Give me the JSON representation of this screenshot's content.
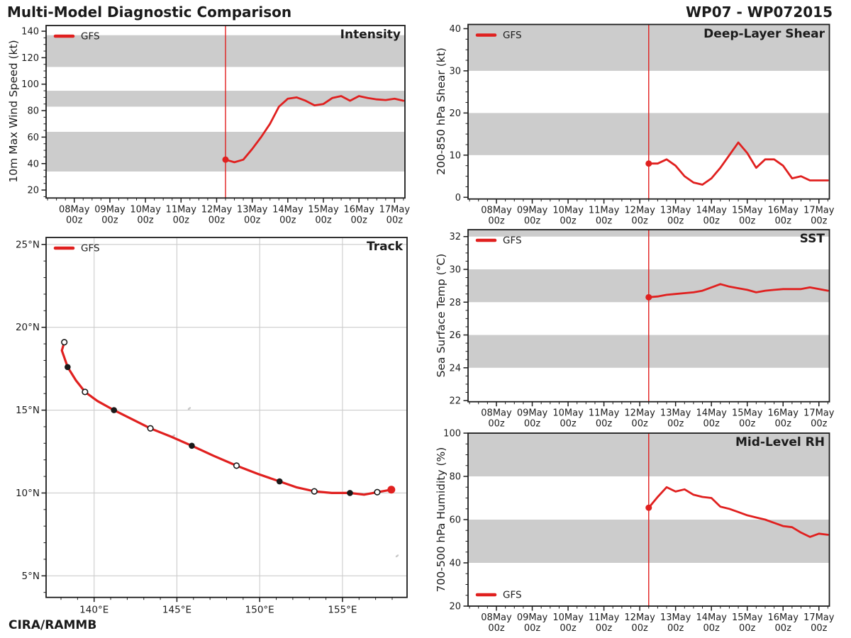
{
  "header": {
    "title": "Multi-Model Diagnostic Comparison",
    "storm_id": "WP07 - WP072015",
    "credit": "CIRA/RAMMB"
  },
  "legend": {
    "label": "GFS"
  },
  "colors": {
    "series": "#e0201f",
    "band": "#cccccc",
    "grid": "#cccccc",
    "spine": "#1c1c1c",
    "text": "#1c1c1c",
    "marker_filled": "#1a1a1a",
    "marker_open": "#ffffff",
    "map_feature": "#c9c9c9"
  },
  "time_axis": {
    "xlim_hours": [
      -121,
      121
    ],
    "minor_step_hours": 6,
    "init_hour": 0,
    "ticks": [
      {
        "hour": -102,
        "label": "08May",
        "sub": "00z"
      },
      {
        "hour": -78,
        "label": "09May",
        "sub": "00z"
      },
      {
        "hour": -54,
        "label": "10May",
        "sub": "00z"
      },
      {
        "hour": -30,
        "label": "11May",
        "sub": "00z"
      },
      {
        "hour": -6,
        "label": "12May",
        "sub": "00z"
      },
      {
        "hour": 18,
        "label": "13May",
        "sub": "00z"
      },
      {
        "hour": 42,
        "label": "14May",
        "sub": "00z"
      },
      {
        "hour": 66,
        "label": "15May",
        "sub": "00z"
      },
      {
        "hour": 90,
        "label": "16May",
        "sub": "00z"
      },
      {
        "hour": 114,
        "label": "17May",
        "sub": "00z"
      }
    ]
  },
  "chart_data": [
    {
      "id": "intensity",
      "type": "line",
      "title": "Intensity",
      "ylabel": "10m Max Wind Speed (kt)",
      "ylim": [
        14,
        144.3
      ],
      "yticks": [
        20,
        40,
        60,
        80,
        100,
        120,
        140
      ],
      "y_minor_step": 5,
      "bands": [
        [
          34,
          64
        ],
        [
          83,
          95
        ],
        [
          113,
          137
        ]
      ],
      "x_start_hour": 0,
      "x_step_hours": 6,
      "values": [
        43,
        41,
        43,
        51,
        60,
        70,
        83,
        89,
        90,
        87.5,
        84,
        85,
        89.5,
        91,
        87.5,
        91,
        89.5,
        88.5,
        88,
        89,
        87.5
      ],
      "legend_pos": "top-left"
    },
    {
      "id": "shear",
      "type": "line",
      "title": "Deep-Layer Shear",
      "ylabel": "200-850 hPa Shear (kt)",
      "ylim": [
        -0.4,
        41
      ],
      "yticks": [
        0,
        10,
        20,
        30,
        40
      ],
      "y_minor_step": 2.5,
      "bands": [
        [
          10,
          20
        ],
        [
          30,
          41
        ]
      ],
      "x_start_hour": 0,
      "x_step_hours": 6,
      "values": [
        8,
        8,
        9,
        7.5,
        5,
        3.5,
        3,
        4.5,
        7,
        10,
        13,
        10.5,
        7,
        9,
        9,
        7.5,
        4.5,
        5,
        4,
        4,
        4
      ],
      "legend_pos": "top-left"
    },
    {
      "id": "sst",
      "type": "line",
      "title": "SST",
      "ylabel": "Sea Surface Temp (°C)",
      "ylim": [
        21.93,
        32.42
      ],
      "yticks": [
        22,
        24,
        26,
        28,
        30,
        32
      ],
      "y_minor_step": 0.5,
      "bands": [
        [
          24,
          26
        ],
        [
          28,
          30
        ],
        [
          32,
          32.42
        ]
      ],
      "x_start_hour": 0,
      "x_step_hours": 6,
      "values": [
        28.3,
        28.35,
        28.45,
        28.5,
        28.55,
        28.6,
        28.7,
        28.9,
        29.1,
        28.95,
        28.85,
        28.75,
        28.6,
        28.7,
        28.75,
        28.8,
        28.8,
        28.8,
        28.9,
        28.8,
        28.7
      ],
      "legend_pos": "top-left"
    },
    {
      "id": "rh",
      "type": "line",
      "title": "Mid-Level RH",
      "ylabel": "700-500 hPa Humidity (%)",
      "ylim": [
        20,
        100
      ],
      "yticks": [
        20,
        40,
        60,
        80,
        100
      ],
      "y_minor_step": 5,
      "bands": [
        [
          40,
          60
        ],
        [
          80,
          100
        ]
      ],
      "x_start_hour": 0,
      "x_step_hours": 6,
      "values": [
        65.5,
        70.5,
        75,
        73,
        74,
        71.5,
        70.5,
        70,
        66,
        65,
        63.5,
        62,
        61,
        60,
        58.5,
        57,
        56.5,
        54,
        52,
        53.5,
        53
      ],
      "legend_pos": "bottom-left"
    },
    {
      "id": "track",
      "type": "track",
      "title": "Track",
      "xlim": [
        137.1,
        158.9
      ],
      "ylim": [
        3.7,
        25.42
      ],
      "xticks": [
        {
          "v": 140,
          "label": "140°E"
        },
        {
          "v": 145,
          "label": "145°E"
        },
        {
          "v": 150,
          "label": "150°E"
        },
        {
          "v": 155,
          "label": "155°E"
        }
      ],
      "yticks": [
        {
          "v": 5,
          "label": "5°N"
        },
        {
          "v": 10,
          "label": "10°N"
        },
        {
          "v": 15,
          "label": "15°N"
        },
        {
          "v": 20,
          "label": "20°N"
        },
        {
          "v": 25,
          "label": "25°N"
        }
      ],
      "minor_step_deg": 1,
      "points": [
        [
          157.95,
          10.2
        ],
        [
          157.1,
          10.05
        ],
        [
          156.3,
          9.9
        ],
        [
          155.45,
          10.0
        ],
        [
          154.35,
          10.0
        ],
        [
          153.3,
          10.1
        ],
        [
          152.2,
          10.35
        ],
        [
          151.2,
          10.7
        ],
        [
          149.9,
          11.15
        ],
        [
          148.6,
          11.65
        ],
        [
          147.2,
          12.25
        ],
        [
          145.9,
          12.85
        ],
        [
          144.65,
          13.4
        ],
        [
          143.4,
          13.9
        ],
        [
          142.3,
          14.45
        ],
        [
          141.2,
          15.0
        ],
        [
          140.2,
          15.55
        ],
        [
          139.45,
          16.1
        ],
        [
          138.9,
          16.8
        ],
        [
          138.4,
          17.6
        ],
        [
          138.05,
          18.6
        ],
        [
          138.2,
          19.1
        ]
      ],
      "markers": [
        {
          "index": 0,
          "type": "start"
        },
        {
          "index": 1,
          "type": "open"
        },
        {
          "index": 3,
          "type": "filled"
        },
        {
          "index": 5,
          "type": "open"
        },
        {
          "index": 7,
          "type": "filled"
        },
        {
          "index": 9,
          "type": "open"
        },
        {
          "index": 11,
          "type": "filled"
        },
        {
          "index": 13,
          "type": "open"
        },
        {
          "index": 15,
          "type": "filled"
        },
        {
          "index": 17,
          "type": "open"
        },
        {
          "index": 19,
          "type": "filled"
        },
        {
          "index": 21,
          "type": "open"
        }
      ],
      "map_features": [
        [
          145.75,
          15.1
        ],
        [
          144.8,
          13.45
        ],
        [
          158.3,
          6.2
        ]
      ],
      "legend_pos": "top-left"
    }
  ]
}
